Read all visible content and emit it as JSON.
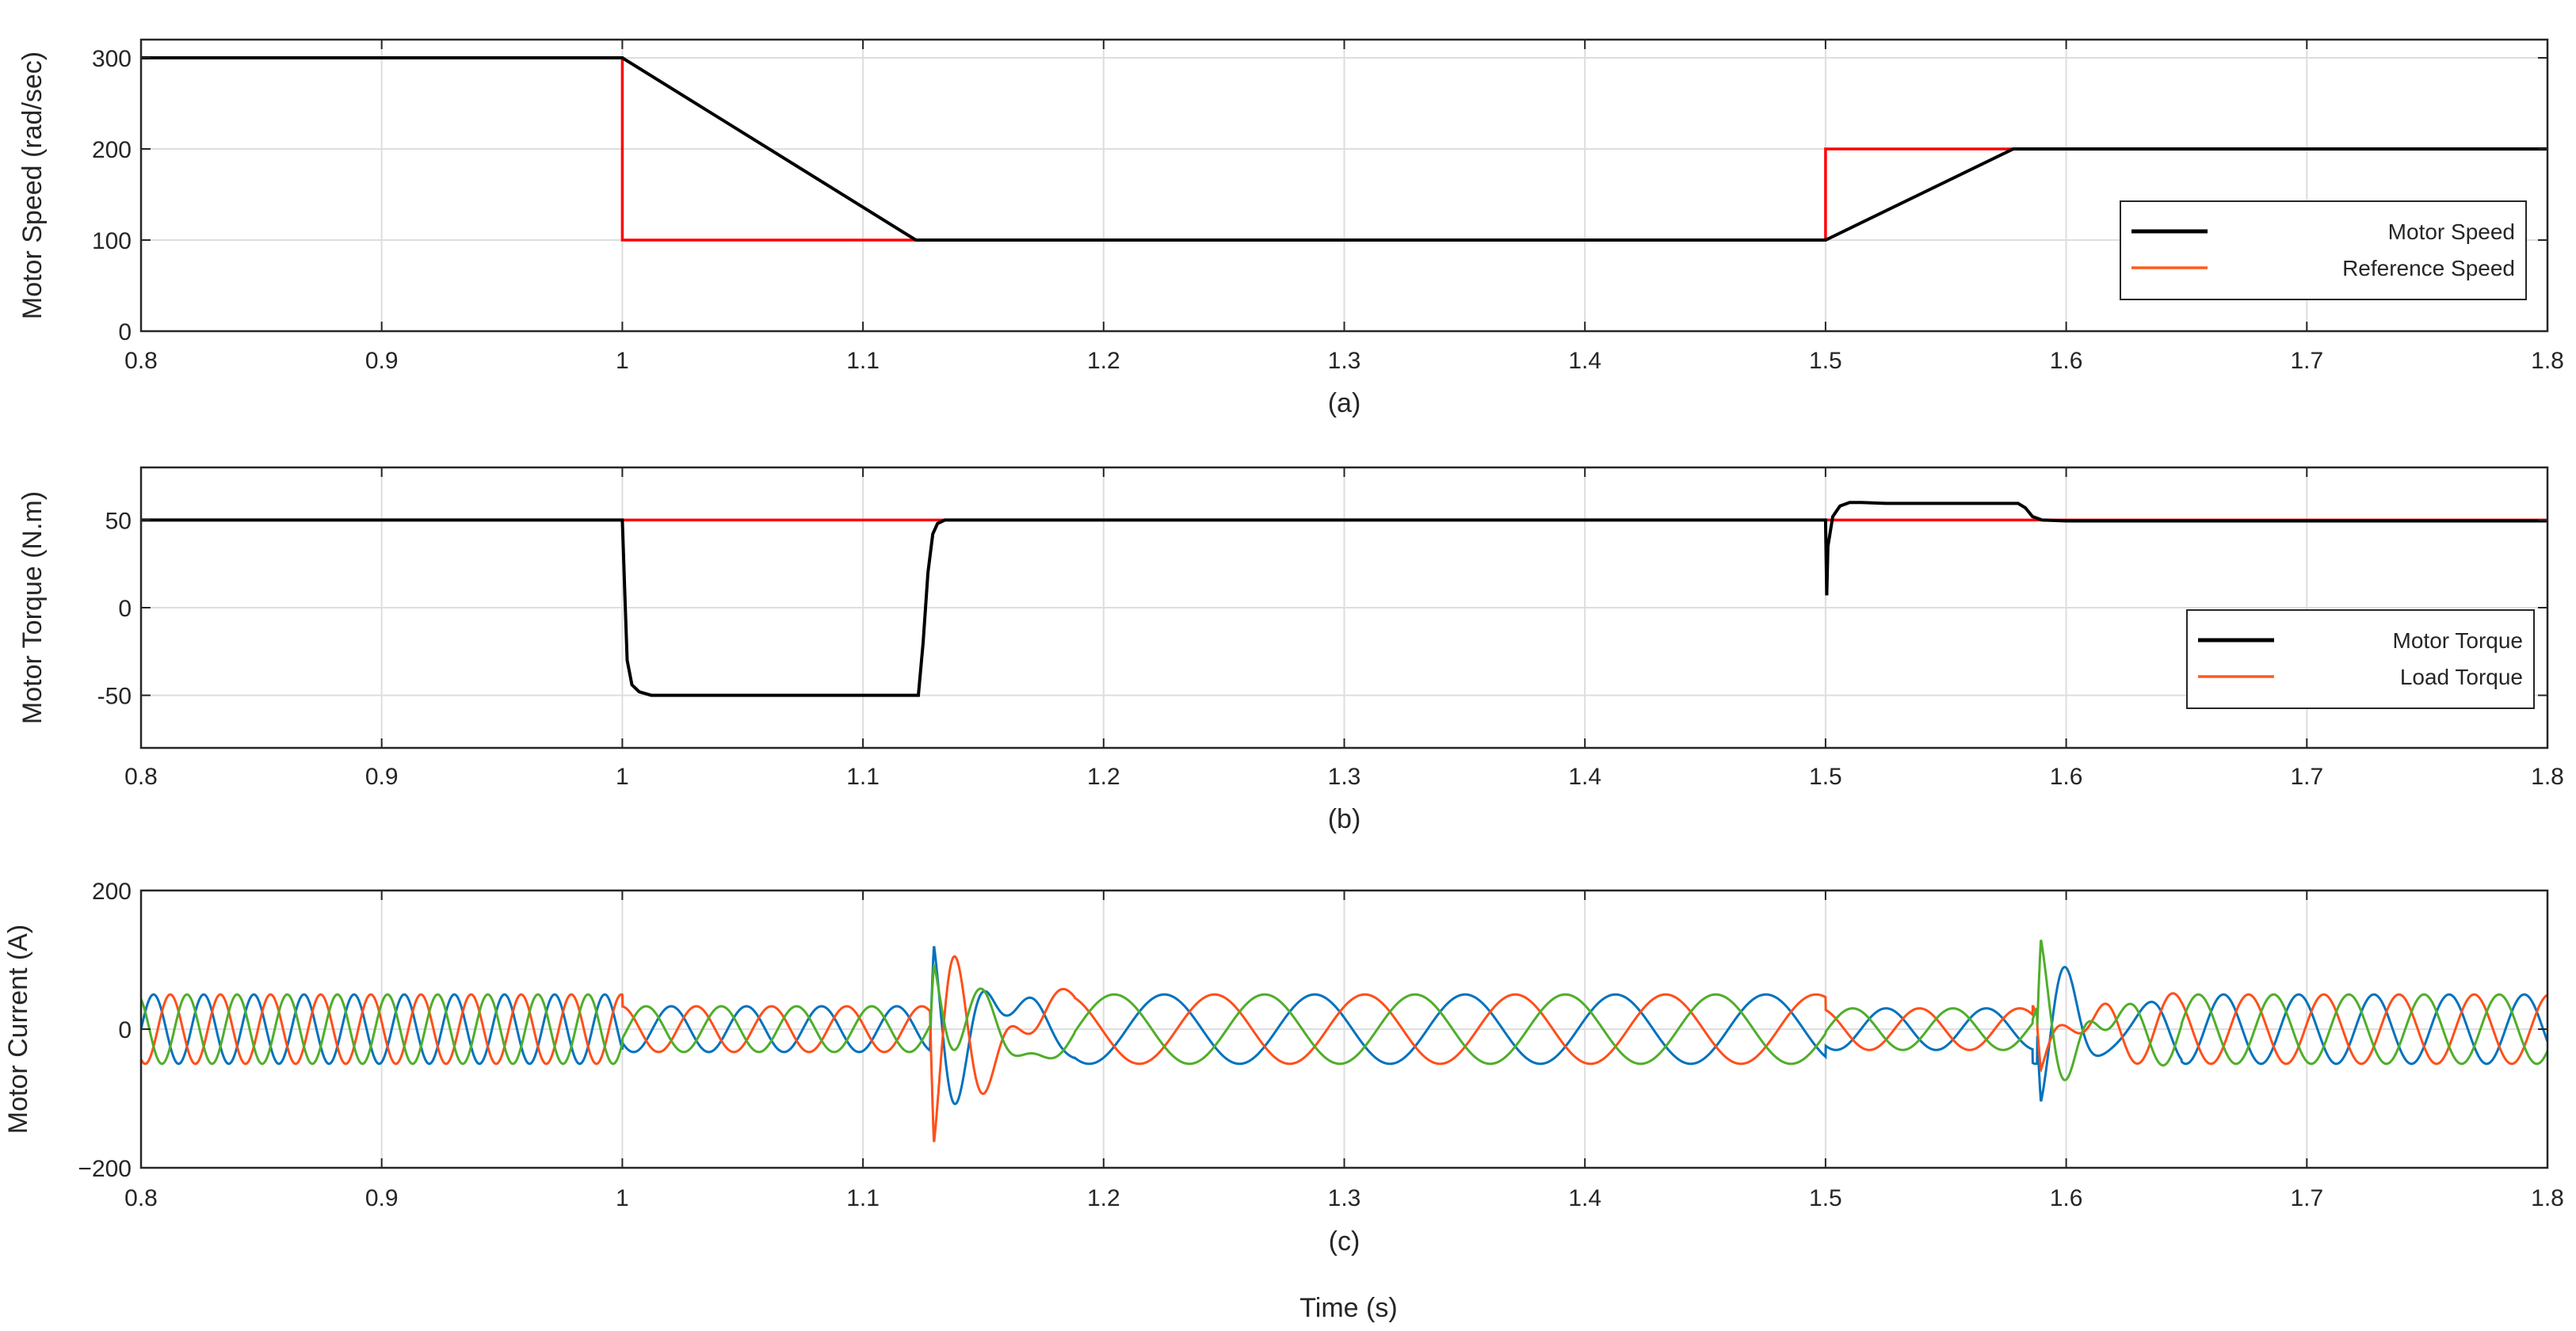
{
  "figure": {
    "xlabel": "Time (s)",
    "colors": {
      "black": "#000000",
      "red": "#ff0000",
      "orange": "#ff5a1f",
      "blue": "#0072bd",
      "current_orange": "#ff4f1a",
      "green": "#4fae2a",
      "grid": "#dedede",
      "axis": "#262626"
    }
  },
  "chart_data": [
    {
      "type": "line",
      "sublabel": "(a)",
      "ylabel": "Motor Speed (rad/sec)",
      "xlim": [
        0.8,
        1.8
      ],
      "ylim": [
        0,
        320
      ],
      "xticks": [
        0.8,
        0.9,
        1.0,
        1.1,
        1.2,
        1.3,
        1.4,
        1.5,
        1.6,
        1.7,
        1.8
      ],
      "xtick_labels": [
        "0.8",
        "0.9",
        "1",
        "1.1",
        "1.2",
        "1.3",
        "1.4",
        "1.5",
        "1.6",
        "1.7",
        "1.8"
      ],
      "yticks": [
        0,
        100,
        200,
        300
      ],
      "ytick_labels": [
        "0",
        "100",
        "200",
        "300"
      ],
      "grid": true,
      "legend_position": "bottom-right",
      "series": [
        {
          "name": "Motor Speed",
          "color": "#000000",
          "x": [
            0.8,
            1.0,
            1.122,
            1.5,
            1.578,
            1.8
          ],
          "y": [
            300,
            300,
            100,
            100,
            200,
            200
          ]
        },
        {
          "name": "Reference Speed",
          "color": "#ff0000",
          "legend_color": "#ff5a1f",
          "x": [
            0.8,
            1.0,
            1.0,
            1.5,
            1.5,
            1.8
          ],
          "y": [
            300,
            300,
            100,
            100,
            200,
            200
          ]
        }
      ]
    },
    {
      "type": "line",
      "sublabel": "(b)",
      "ylabel": "Motor Torque (N.m)",
      "xlim": [
        0.8,
        1.8
      ],
      "ylim": [
        -80,
        80
      ],
      "xticks": [
        0.8,
        0.9,
        1.0,
        1.1,
        1.2,
        1.3,
        1.4,
        1.5,
        1.6,
        1.7,
        1.8
      ],
      "xtick_labels": [
        "0.8",
        "0.9",
        "1",
        "1.1",
        "1.2",
        "1.3",
        "1.4",
        "1.5",
        "1.6",
        "1.7",
        "1.8"
      ],
      "yticks": [
        -50,
        0,
        50
      ],
      "ytick_labels": [
        "-50",
        "0",
        "50"
      ],
      "grid": true,
      "legend_position": "bottom-right",
      "series": [
        {
          "name": "Motor Torque",
          "color": "#000000",
          "x": [
            0.8,
            1.0,
            1.001,
            1.002,
            1.004,
            1.007,
            1.012,
            1.02,
            1.123,
            1.125,
            1.127,
            1.129,
            1.131,
            1.134,
            1.14,
            1.5,
            1.5005,
            1.501,
            1.503,
            1.506,
            1.51,
            1.515,
            1.525,
            1.56,
            1.58,
            1.583,
            1.586,
            1.59,
            1.6,
            1.8
          ],
          "y": [
            50,
            50,
            10,
            -30,
            -44,
            -48,
            -50,
            -50,
            -50,
            -20,
            20,
            42,
            48,
            50,
            50,
            50,
            7,
            35,
            52,
            58,
            60,
            60,
            59.5,
            59.5,
            59.5,
            57,
            52,
            50,
            49.5,
            49.5
          ]
        },
        {
          "name": "Load Torque",
          "color": "#ff0000",
          "legend_color": "#ff5a1f",
          "x": [
            0.8,
            1.5,
            1.51,
            1.6,
            1.8
          ],
          "y": [
            50,
            50,
            50,
            50,
            50
          ]
        }
      ]
    },
    {
      "type": "line",
      "sublabel": "(c)",
      "ylabel": "Motor Current (A)",
      "xlim": [
        0.8,
        1.8
      ],
      "ylim": [
        -200,
        200
      ],
      "xticks": [
        0.8,
        0.9,
        1.0,
        1.1,
        1.2,
        1.3,
        1.4,
        1.5,
        1.6,
        1.7,
        1.8
      ],
      "xtick_labels": [
        "0.8",
        "0.9",
        "1",
        "1.1",
        "1.2",
        "1.3",
        "1.4",
        "1.5",
        "1.6",
        "1.7",
        "1.8"
      ],
      "yticks": [
        -200,
        0,
        200
      ],
      "ytick_labels": [
        "−200",
        "0",
        "200"
      ],
      "grid": true,
      "series": [
        {
          "phase": "a",
          "color": "#0072bd"
        },
        {
          "phase": "b",
          "color": "#ff4f1a"
        },
        {
          "phase": "c",
          "color": "#4fae2a"
        }
      ],
      "segments": [
        {
          "x": [
            0.8,
            1.0
          ],
          "amplitude": 50,
          "frequency_hz": 48
        },
        {
          "x": [
            1.0,
            1.128
          ],
          "amplitude": 33,
          "frequency_hz": 32
        },
        {
          "x": [
            1.128,
            1.5
          ],
          "amplitude": 50,
          "frequency_hz": 16
        },
        {
          "x": [
            1.5,
            1.586
          ],
          "amplitude": 30,
          "frequency_hz": 24
        },
        {
          "x": [
            1.586,
            1.8
          ],
          "amplitude": 50,
          "frequency_hz": 32
        }
      ],
      "transients": [
        {
          "x": 1.128,
          "peaks": {
            "a": 150,
            "b": -200,
            "c": 110
          }
        },
        {
          "x": 1.588,
          "peaks": {
            "a": -120,
            "b": -70,
            "c": 150
          }
        }
      ]
    }
  ]
}
